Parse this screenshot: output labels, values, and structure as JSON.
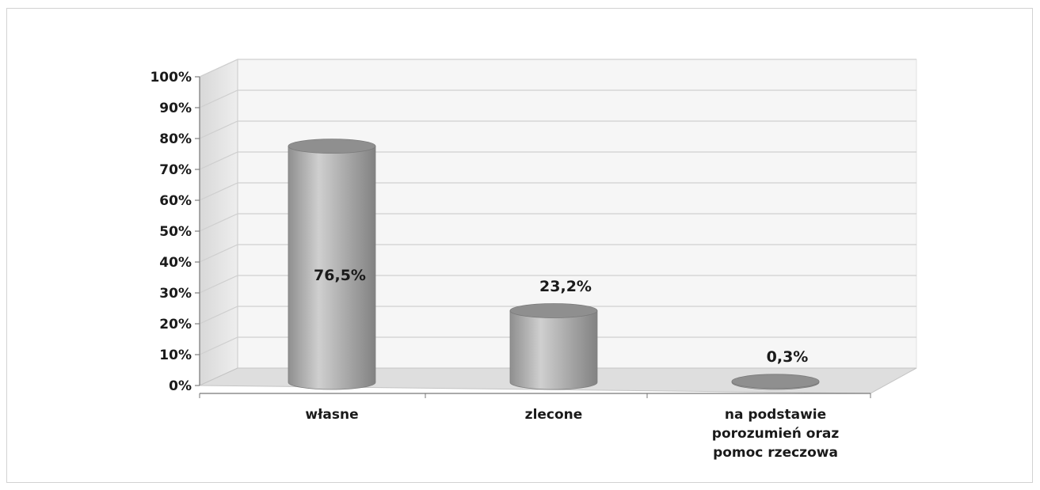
{
  "chart_data": {
    "type": "bar",
    "style": "3d-cylinder",
    "categories": [
      "własne",
      "zlecone",
      "na podstawie porozumień oraz pomoc rzeczowa"
    ],
    "category_lines": [
      [
        "własne"
      ],
      [
        "zlecone"
      ],
      [
        "na podstawie",
        "porozumień oraz",
        "pomoc rzeczowa"
      ]
    ],
    "values": [
      76.5,
      23.2,
      0.3
    ],
    "data_labels": [
      "76,5%",
      "23,2%",
      "0,3%"
    ],
    "ylim": [
      0,
      100
    ],
    "yticks": [
      0,
      10,
      20,
      30,
      40,
      50,
      60,
      70,
      80,
      90,
      100
    ],
    "ytick_labels": [
      "0%",
      "10%",
      "20%",
      "30%",
      "40%",
      "50%",
      "60%",
      "70%",
      "80%",
      "90%",
      "100%"
    ],
    "grid": true,
    "title": "",
    "xlabel": "",
    "ylabel": "",
    "colors": {
      "bar_body": "#a9a9a9",
      "bar_highlight": "#d0d0d0",
      "bar_shadow": "#8a8a8a",
      "bar_top": "#8f8f8f",
      "grid": "#cfcfcf",
      "wall": "#f6f6f6",
      "floor": "#dedede"
    }
  }
}
